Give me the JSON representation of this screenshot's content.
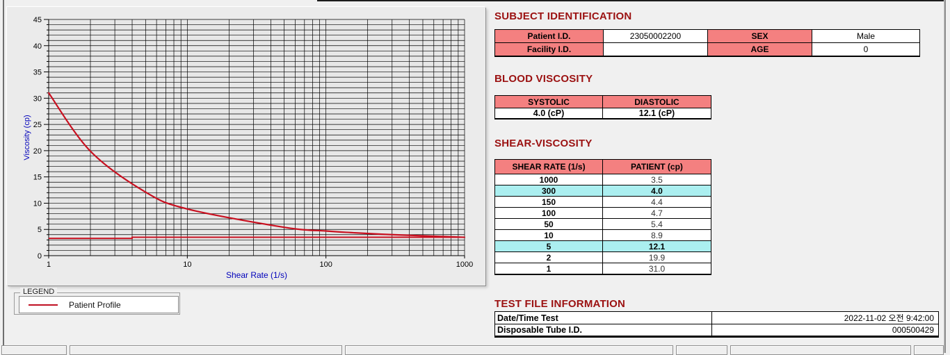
{
  "colors": {
    "section_title": "#9b1111",
    "header_pink": "#f48080",
    "highlight_cyan": "#abeff0",
    "series_red": "#c81020",
    "axis_label_blue": "#0000bb",
    "window_bg": "#f0f0f0"
  },
  "chart_data": {
    "type": "line",
    "title": "",
    "xlabel": "Shear Rate (1/s)",
    "ylabel": "Viscosity (cp)",
    "x_scale": "log",
    "xlim": [
      1,
      1000
    ],
    "ylim": [
      0,
      45
    ],
    "x_major_ticks": [
      1,
      10,
      100,
      1000
    ],
    "y_major_tick_step": 5,
    "y_minor_tick_step": 1,
    "grid": "dense black minor grid, log-x decades and 1-unit y lines",
    "legend_position": "group box below chart, left",
    "series": [
      {
        "name": "Patient Profile",
        "color": "#c81020",
        "x": [
          1,
          2,
          5,
          10,
          50,
          100,
          150,
          300,
          1000
        ],
        "y": [
          31.0,
          19.9,
          12.1,
          8.9,
          5.4,
          4.7,
          4.4,
          4.0,
          3.5
        ]
      }
    ],
    "reference_line": {
      "comment": "horizontal red baseline with small step near x=4",
      "color": "#c81020",
      "x": [
        1,
        4,
        4,
        1000
      ],
      "y": [
        3.3,
        3.3,
        3.5,
        3.5
      ]
    }
  },
  "legend": {
    "box_label": "LEGEND",
    "entry": "Patient Profile"
  },
  "subject": {
    "title": "SUBJECT IDENTIFICATION",
    "rows": [
      {
        "label": "Patient I.D.",
        "value": "23050002200",
        "label2": "SEX",
        "value2": "Male"
      },
      {
        "label": "Facility I.D.",
        "value": "",
        "label2": "AGE",
        "value2": "0"
      }
    ]
  },
  "blood_viscosity": {
    "title": "BLOOD VISCOSITY",
    "headers": [
      "SYSTOLIC",
      "DIASTOLIC"
    ],
    "values": [
      "4.0 (cP)",
      "12.1 (cP)"
    ]
  },
  "shear_viscosity": {
    "title": "SHEAR-VISCOSITY",
    "headers": [
      "SHEAR RATE (1/s)",
      "PATIENT (cp)"
    ],
    "rows": [
      {
        "rate": "1000",
        "value": "3.5",
        "highlight": false
      },
      {
        "rate": "300",
        "value": "4.0",
        "highlight": true
      },
      {
        "rate": "150",
        "value": "4.4",
        "highlight": false
      },
      {
        "rate": "100",
        "value": "4.7",
        "highlight": false
      },
      {
        "rate": "50",
        "value": "5.4",
        "highlight": false
      },
      {
        "rate": "10",
        "value": "8.9",
        "highlight": false
      },
      {
        "rate": "5",
        "value": "12.1",
        "highlight": true
      },
      {
        "rate": "2",
        "value": "19.9",
        "highlight": false
      },
      {
        "rate": "1",
        "value": "31.0",
        "highlight": false
      }
    ]
  },
  "test_file": {
    "title": "TEST FILE INFORMATION",
    "rows": [
      {
        "label": "Date/Time Test",
        "value": "2022-11-02  오전 9:42:00"
      },
      {
        "label": "Disposable Tube I.D.",
        "value": "000500429"
      }
    ]
  }
}
